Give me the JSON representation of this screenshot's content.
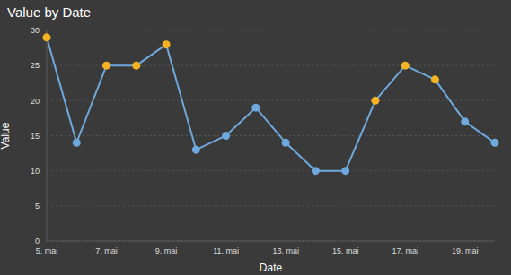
{
  "chart_data": {
    "type": "line",
    "title": "Value by Date",
    "x_label": "Date",
    "y_label": "Value",
    "categories": [
      "5. mai",
      null,
      "7. mai",
      null,
      "9. mai",
      null,
      "11. mai",
      null,
      "13. mai",
      null,
      "15. mai",
      null,
      "17. mai",
      null,
      "19. mai",
      null
    ],
    "values": [
      29,
      14,
      25,
      25,
      28,
      13,
      15,
      19,
      14,
      10,
      10,
      20,
      25,
      23,
      17,
      14
    ],
    "color": "#6fa8dc",
    "colors": [
      "#f5b324",
      "#6fa8dc",
      "#f5b324",
      "#f5b324",
      "#f5b324",
      "#6fa8dc",
      "#6fa8dc",
      "#6fa8dc",
      "#6fa8dc",
      "#6fa8dc",
      "#6fa8dc",
      "#f5b324",
      "#f5b324",
      "#f5b324",
      "#6fa8dc",
      "#6fa8dc"
    ],
    "marker": "circle",
    "ylim": [
      0,
      30
    ],
    "yticks": [
      0,
      5,
      10,
      15,
      20,
      25,
      30
    ],
    "grid": true
  }
}
